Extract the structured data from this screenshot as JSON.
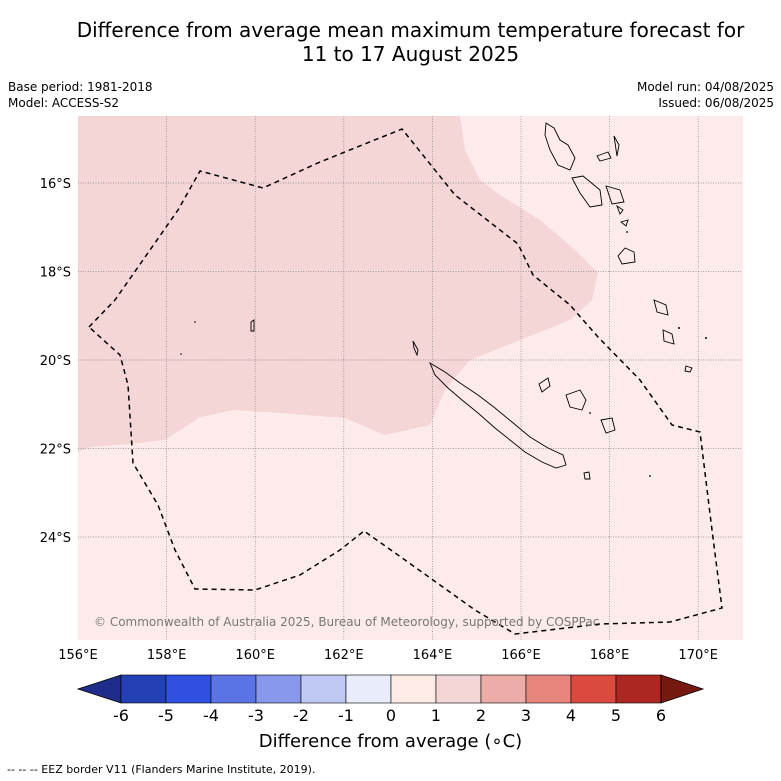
{
  "header": {
    "title_line1": "Difference from average mean maximum temperature forecast for",
    "title_line2": "11 to 17 August 2025",
    "base_period": "Base period: 1981-2018",
    "model": "Model: ACCESS-S2",
    "model_run": "Model run: 04/08/2025",
    "issued": "Issued: 06/08/2025"
  },
  "map": {
    "copyright": "© Commonwealth of Australia 2025, Bureau of Meteorology, supported by COSPPac",
    "lon_ticks": [
      "156°E",
      "158°E",
      "160°E",
      "162°E",
      "164°E",
      "166°E",
      "168°E",
      "170°E"
    ],
    "lat_ticks": [
      "16°S",
      "18°S",
      "20°S",
      "22°S",
      "24°S"
    ],
    "regions": [
      {
        "category": "1 to 2",
        "color": "#f5d6d6"
      },
      {
        "category": "0 to 1",
        "color": "#fcebea"
      }
    ]
  },
  "colorbar": {
    "title": "Difference from average (∘C)",
    "tick_labels": [
      "-6",
      "-5",
      "-4",
      "-3",
      "-2",
      "-1",
      "0",
      "1",
      "2",
      "3",
      "4",
      "5",
      "6"
    ],
    "colors": [
      "#1e2d8a",
      "#2440b5",
      "#2f50e0",
      "#5a74e6",
      "#8898ec",
      "#c0c8f4",
      "#e8ecfb",
      "#fdebe6",
      "#f5d6d6",
      "#eeaca8",
      "#e8857d",
      "#da4a3f",
      "#ac2721",
      "#75180f"
    ]
  },
  "footer": {
    "legend_text": "-- -- -- EEZ border V11 (Flanders Marine Institute, 2019)."
  }
}
